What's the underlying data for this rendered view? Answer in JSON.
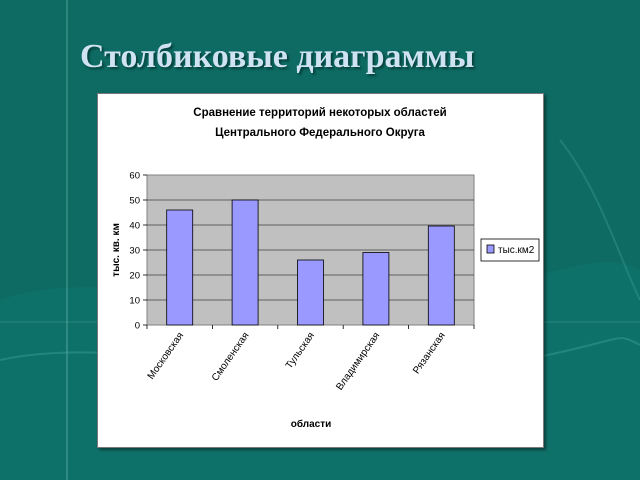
{
  "slide": {
    "title": "Столбиковые диаграммы"
  },
  "colors": {
    "background": "#0d6b63",
    "plot_area": "#c0c0c0",
    "bar_fill": "#9999ff",
    "bar_stroke": "#000000"
  },
  "chart_data": {
    "type": "bar",
    "title": "Сравнение территорий некоторых областей",
    "title_line2": "Центрального Федерального Округа",
    "categories": [
      "Московская",
      "Смоленская",
      "Тульская",
      "Владимирская",
      "Рязанская"
    ],
    "series": [
      {
        "name": "тыс.км2",
        "values": [
          46,
          50,
          26,
          29,
          39.6
        ]
      }
    ],
    "xlabel": "области",
    "ylabel": "тыс. кв. км",
    "ylim": [
      0,
      60
    ],
    "yticks": [
      0,
      10,
      20,
      30,
      40,
      50,
      60
    ],
    "grid": true,
    "legend_position": "right"
  }
}
